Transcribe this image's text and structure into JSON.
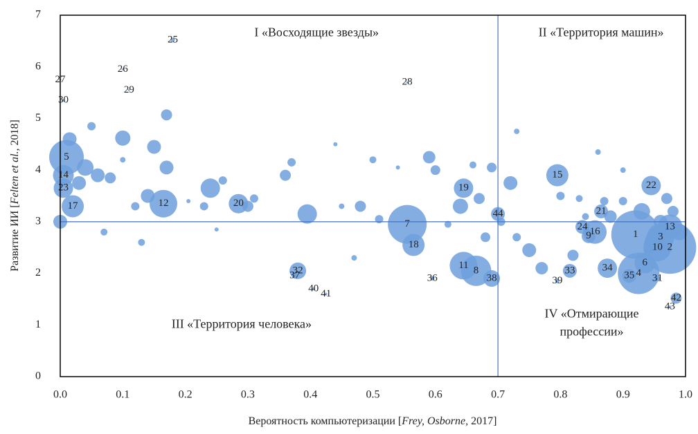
{
  "chart_data": {
    "type": "scatter",
    "xlabel": [
      "Вероятность компьютеризации [",
      "Frey, Osborne,",
      " 2017]"
    ],
    "ylabel": [
      "Развитие ИИ [",
      "Felten et al.,",
      " 2018]"
    ],
    "annotations": [
      "I «Восходящие звезды»",
      "II «Территория машин»",
      "III «Территория человека»",
      "IV «Отмирающие",
      "профессии»"
    ],
    "xlim": [
      0,
      1
    ],
    "ylim": [
      0,
      7
    ],
    "xticks": [
      {
        "value": 0,
        "label": "0.0"
      },
      0.1,
      0.2,
      0.3,
      0.4,
      0.5,
      0.6,
      0.7,
      0.8,
      0.9,
      {
        "value": 1,
        "label": "1.0"
      }
    ],
    "yticks": [
      0,
      1,
      2,
      3,
      4,
      5,
      6,
      7
    ],
    "vline": 0.7,
    "hline": 3,
    "series": [
      {
        "color": "#6fa0dc",
        "labels": [
          "1",
          "2",
          "3",
          "4",
          "5",
          "6",
          "7",
          "8",
          "9",
          "10",
          "11",
          "12",
          "13",
          "14",
          "15",
          "16",
          "17",
          "18",
          "19",
          "20",
          "21",
          "22",
          "23",
          "24",
          "25",
          "26",
          "27",
          "28",
          "29",
          "30",
          "31",
          "32",
          "33",
          "34",
          "35",
          "36",
          "37",
          "38",
          "39",
          "40",
          "41",
          "42",
          "43",
          "44",
          null,
          null,
          null,
          null,
          null,
          null,
          null,
          null,
          null,
          null,
          null,
          null,
          null,
          null,
          null,
          null,
          null,
          null,
          null,
          null,
          null,
          null,
          null,
          null,
          null,
          null,
          null,
          null,
          null,
          null,
          null,
          null,
          null,
          null,
          null,
          null,
          null,
          null,
          null,
          null,
          null,
          null,
          null,
          null,
          null,
          null,
          null,
          null,
          null,
          null,
          null,
          null,
          null,
          null,
          null,
          null,
          null,
          null,
          null,
          null,
          null
        ],
        "x": [
          0.92,
          0.975,
          0.96,
          0.925,
          0.01,
          0.935,
          0.555,
          0.665,
          0.845,
          0.955,
          0.645,
          0.165,
          0.975,
          0.005,
          0.795,
          0.855,
          0.02,
          0.565,
          0.645,
          0.285,
          0.865,
          0.945,
          0.005,
          0.835,
          0.18,
          0.1,
          0.0,
          0.555,
          0.11,
          0.005,
          0.955,
          0.38,
          0.815,
          0.875,
          0.91,
          0.595,
          0.375,
          0.69,
          0.795,
          0.405,
          0.425,
          0.985,
          0.975,
          0.7,
          0.05,
          0.1,
          0.15,
          0.17,
          0.17,
          0.1,
          0.08,
          0.06,
          0.04,
          0.03,
          0.12,
          0.14,
          0.24,
          0.23,
          0.26,
          0.31,
          0.3,
          0.36,
          0.37,
          0.395,
          0.44,
          0.45,
          0.48,
          0.51,
          0.5,
          0.54,
          0.59,
          0.6,
          0.64,
          0.67,
          0.69,
          0.66,
          0.72,
          0.73,
          0.75,
          0.77,
          0.8,
          0.82,
          0.83,
          0.87,
          0.88,
          0.9,
          0.93,
          0.96,
          0.98,
          0.99,
          0.9,
          0.86,
          0.0,
          0.015,
          0.07,
          0.13,
          0.205,
          0.62,
          0.68,
          0.705,
          0.84,
          0.97,
          0.25,
          0.47,
          0.73
        ],
        "values": [
          2.75,
          2.5,
          2.7,
          2.0,
          4.25,
          2.2,
          2.95,
          2.05,
          2.72,
          2.5,
          2.15,
          3.35,
          2.9,
          3.9,
          3.9,
          2.8,
          3.3,
          2.55,
          3.65,
          3.35,
          3.2,
          3.7,
          3.65,
          2.9,
          6.52,
          5.95,
          5.75,
          5.7,
          5.55,
          5.35,
          1.9,
          2.05,
          2.05,
          2.1,
          1.95,
          1.9,
          1.95,
          1.9,
          1.85,
          1.7,
          1.6,
          1.52,
          1.35,
          3.15,
          4.85,
          4.62,
          4.45,
          5.07,
          4.05,
          4.2,
          3.85,
          3.9,
          4.05,
          3.75,
          3.3,
          3.5,
          3.65,
          3.3,
          3.8,
          3.45,
          3.3,
          3.9,
          4.15,
          3.15,
          4.5,
          3.3,
          3.3,
          3.05,
          4.2,
          4.05,
          4.25,
          4.0,
          3.3,
          3.45,
          4.05,
          4.1,
          3.75,
          4.75,
          2.45,
          2.1,
          3.5,
          2.35,
          3.45,
          3.4,
          3.1,
          3.4,
          3.2,
          3.0,
          3.2,
          2.8,
          4.0,
          4.35,
          3.0,
          4.6,
          2.8,
          2.6,
          3.4,
          2.95,
          2.7,
          3.0,
          3.1,
          3.45,
          2.85,
          2.3,
          2.7
        ],
        "sizes": [
          35,
          38,
          20,
          30,
          25,
          15,
          28,
          22,
          10,
          20,
          20,
          20,
          18,
          15,
          16,
          17,
          16,
          16,
          14,
          14,
          10,
          14,
          14,
          10,
          3,
          1,
          1,
          1,
          1,
          2,
          4,
          12,
          10,
          14,
          10,
          3,
          4,
          12,
          3,
          2,
          2,
          8,
          2,
          10,
          6,
          11,
          10,
          8,
          10,
          4,
          8,
          10,
          12,
          10,
          6,
          10,
          14,
          6,
          6,
          6,
          8,
          8,
          6,
          14,
          3,
          4,
          8,
          6,
          5,
          3,
          9,
          7,
          11,
          8,
          7,
          5,
          10,
          4,
          10,
          9,
          6,
          8,
          5,
          6,
          9,
          6,
          12,
          10,
          8,
          12,
          4,
          4,
          10,
          10,
          5,
          5,
          3,
          5,
          7,
          6,
          5,
          8,
          3,
          4,
          6
        ]
      }
    ]
  }
}
